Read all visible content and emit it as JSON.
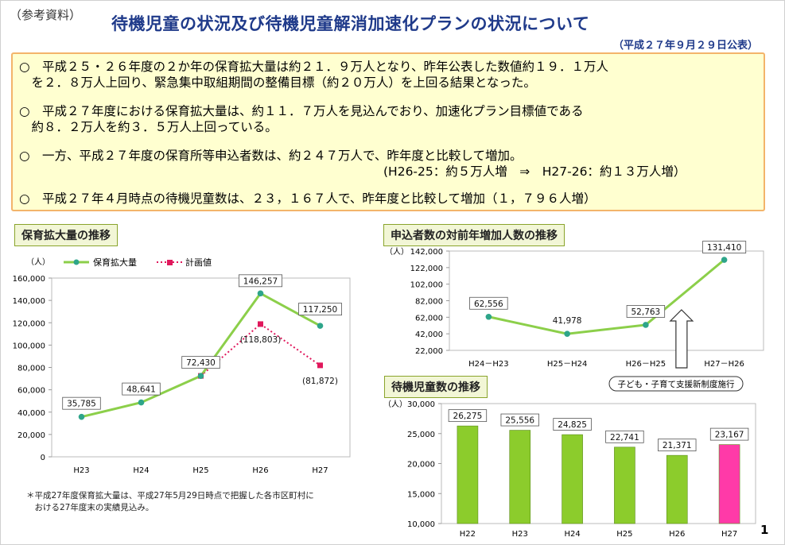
{
  "header": {
    "ref_label": "（参考資料）",
    "title": "待機児童の状況及び待機児童解消加速化プランの状況について",
    "date": "（平成２７年９月２９日公表）"
  },
  "summary": {
    "p1": "○　平成２５・２６年度の２か年の保育拡大量は約２１．９万人となり、昨年公表した数値約１９．１万人\n　を２．８万人上回り、緊急集中取組期間の整備目標（約２０万人）を上回る結果となった。",
    "p2": "○　平成２７年度における保育拡大量は、約１１．７万人を見込んでおり、加速化プラン目標値である\n　約８．２万人を約３．５万人上回っている。",
    "p3a": "○　一方、平成２７年度の保育所等申込者数は、約２４７万人で、昨年度と比較して増加。",
    "p3b": "(H26-25：約５万人増　⇒　H27-26：約１３万人増）",
    "p4": "○　平成２７年４月時点の待機児童数は、２３，１６７人で、昨年度と比較して増加（１，７９６人増）"
  },
  "colors": {
    "line_green": "#8ccf4a",
    "marker_teal": "#2ea58a",
    "plan_pink": "#e0185c",
    "bar_green": "#8ccc2c",
    "bar_pink": "#ff3aa8",
    "title_blue": "#1f3a8a"
  },
  "labels": {
    "chart1": "保育拡大量の推移",
    "chart2": "申込者数の対前年増加人数の推移",
    "chart3": "待機児童数の推移",
    "new_system": "子ども・子育て支援新制度施行",
    "footnote": "＊平成27年度保育拡大量は、平成27年5月29日時点で把握した各市区町村に\n　おける27年度末の実績見込み。",
    "page": "1"
  },
  "chart_data": [
    {
      "type": "line",
      "title": "保育拡大量の推移",
      "ylabel": "（人）",
      "ylim": [
        0,
        160000
      ],
      "yticks": [
        "0",
        "20,000",
        "40,000",
        "60,000",
        "80,000",
        "100,000",
        "120,000",
        "140,000",
        "160,000"
      ],
      "categories": [
        "H23",
        "H24",
        "H25",
        "H26",
        "H27"
      ],
      "series": [
        {
          "name": "保育拡大量",
          "values": [
            35785,
            48641,
            72430,
            146257,
            117250
          ],
          "labels": [
            "35,785",
            "48,641",
            "72,430",
            "146,257",
            "117,250"
          ]
        },
        {
          "name": "計画値",
          "values": [
            null,
            null,
            72430,
            118803,
            81872
          ],
          "labels": [
            "",
            "",
            "",
            "(118,803)",
            "(81,872)"
          ]
        }
      ]
    },
    {
      "type": "line",
      "title": "申込者数の対前年増加人数の推移",
      "ylabel": "（人）",
      "ylim": [
        22000,
        142000
      ],
      "yticks": [
        "22,000",
        "42,000",
        "62,000",
        "82,000",
        "102,000",
        "122,000",
        "142,000"
      ],
      "categories": [
        "H24－H23",
        "H25－H24",
        "H26－H25",
        "H27－H26"
      ],
      "values": [
        62556,
        41978,
        52763,
        131410
      ],
      "labels": [
        "62,556",
        "41,978",
        "52,763",
        "131,410"
      ]
    },
    {
      "type": "bar",
      "title": "待機児童数の推移",
      "ylabel": "（人）",
      "ylim": [
        10000,
        30000
      ],
      "yticks": [
        "10,000",
        "15,000",
        "20,000",
        "25,000",
        "30,000"
      ],
      "categories": [
        "H22",
        "H23",
        "H24",
        "H25",
        "H26",
        "H27"
      ],
      "values": [
        26275,
        25556,
        24825,
        22741,
        21371,
        23167
      ],
      "labels": [
        "26,275",
        "25,556",
        "24,825",
        "22,741",
        "21,371",
        "23,167"
      ]
    }
  ]
}
